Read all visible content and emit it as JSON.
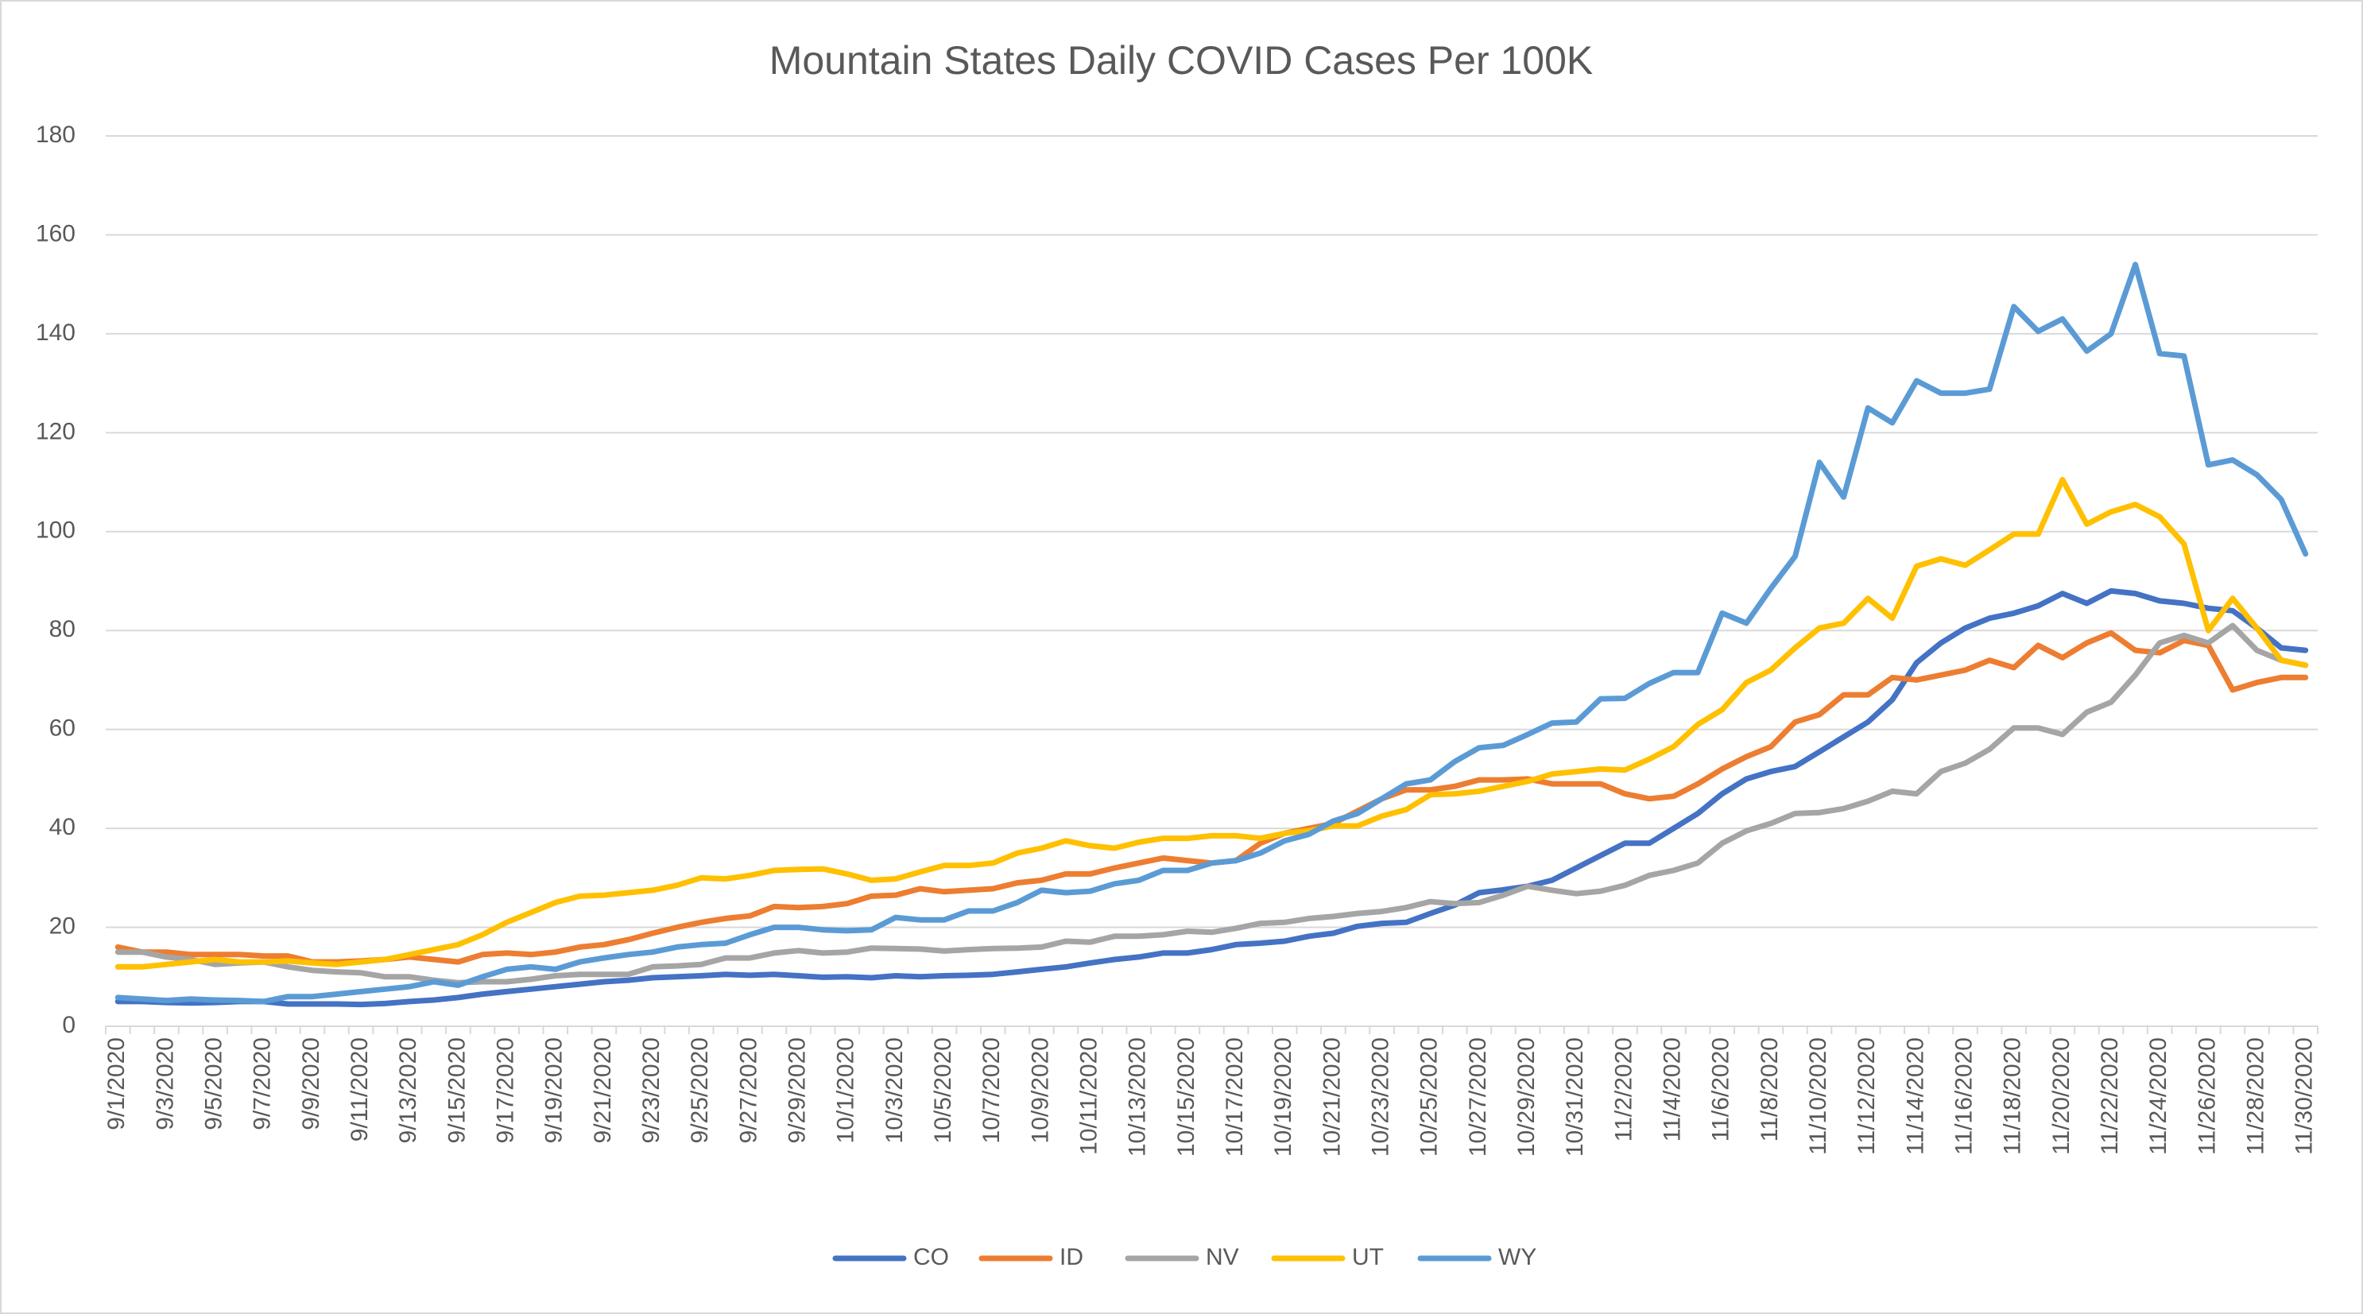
{
  "chart_data": {
    "type": "line",
    "title": "Mountain States Daily COVID Cases Per 100K",
    "categories": [
      "9/1/2020",
      null,
      "9/3/2020",
      null,
      "9/5/2020",
      null,
      "9/7/2020",
      null,
      "9/9/2020",
      null,
      "9/11/2020",
      null,
      "9/13/2020",
      null,
      "9/15/2020",
      null,
      "9/17/2020",
      null,
      "9/19/2020",
      null,
      "9/21/2020",
      null,
      "9/23/2020",
      null,
      "9/25/2020",
      null,
      "9/27/2020",
      null,
      "9/29/2020",
      null,
      "10/1/2020",
      null,
      "10/3/2020",
      null,
      "10/5/2020",
      null,
      "10/7/2020",
      null,
      "10/9/2020",
      null,
      "10/11/2020",
      null,
      "10/13/2020",
      null,
      "10/15/2020",
      null,
      "10/17/2020",
      null,
      "10/19/2020",
      null,
      "10/21/2020",
      null,
      "10/23/2020",
      null,
      "10/25/2020",
      null,
      "10/27/2020",
      null,
      "10/29/2020",
      null,
      "10/31/2020",
      null,
      "11/2/2020",
      null,
      "11/4/2020",
      null,
      "11/6/2020",
      null,
      "11/8/2020",
      null,
      "11/10/2020",
      null,
      "11/12/2020",
      null,
      "11/14/2020",
      null,
      "11/16/2020",
      null,
      "11/18/2020",
      null,
      "11/20/2020",
      null,
      "11/22/2020",
      null,
      "11/24/2020",
      null,
      "11/26/2020",
      null,
      "11/28/2020",
      null,
      "11/30/2020"
    ],
    "series": [
      {
        "name": "CO",
        "color": "#4472c4",
        "values": [
          5,
          5,
          4.8,
          4.7,
          4.8,
          5,
          5,
          4.5,
          4.5,
          4.5,
          4.4,
          4.6,
          5,
          5.3,
          5.8,
          6.5,
          7,
          7.5,
          8,
          8.5,
          9,
          9.3,
          9.8,
          10,
          10.2,
          10.5,
          10.3,
          10.5,
          10.2,
          9.9,
          10,
          9.8,
          10.2,
          10,
          10.2,
          10.3,
          10.5,
          11,
          11.5,
          12,
          12.8,
          13.5,
          14,
          14.8,
          14.8,
          15.5,
          16.5,
          16.8,
          17.2,
          18.2,
          18.8,
          20.2,
          20.8,
          21,
          22.8,
          24.5,
          27,
          27.6,
          28.3,
          29.5,
          32,
          34.5,
          37,
          37,
          40,
          43,
          47,
          50,
          51.5,
          52.5,
          55.5,
          58.5,
          61.5,
          66,
          73.5,
          77.5,
          80.5,
          82.5,
          83.5,
          85,
          87.5,
          85.5,
          88,
          87.5,
          86,
          85.5,
          84.5,
          84,
          80.5,
          76.5,
          76
        ]
      },
      {
        "name": "ID",
        "color": "#ed7d31",
        "values": [
          16,
          15,
          15,
          14.5,
          14.5,
          14.5,
          14.2,
          14.2,
          13,
          13,
          13.2,
          13.5,
          14,
          13.5,
          13,
          14.5,
          14.8,
          14.5,
          15,
          16,
          16.5,
          17.5,
          18.8,
          20,
          21,
          21.8,
          22.3,
          24.2,
          24,
          24.2,
          24.8,
          26.3,
          26.5,
          27.8,
          27.2,
          27.5,
          27.8,
          29,
          29.5,
          30.8,
          30.8,
          32,
          33,
          34,
          33.5,
          33,
          33.5,
          37,
          39,
          40,
          41,
          43.5,
          46,
          47.8,
          47.8,
          48.5,
          49.8,
          49.8,
          50,
          49,
          49,
          49,
          47,
          46,
          46.5,
          49,
          52,
          54.5,
          56.5,
          61.5,
          63,
          67,
          67,
          70.5,
          70,
          71,
          72,
          74,
          72.5,
          77,
          74.5,
          77.5,
          79.5,
          76,
          75.5,
          78,
          77,
          68,
          69.5,
          70.5,
          70.5
        ]
      },
      {
        "name": "NV",
        "color": "#a5a5a5",
        "values": [
          15,
          15,
          14,
          13.5,
          12.5,
          12.8,
          13,
          12,
          11.3,
          11,
          10.8,
          10,
          10,
          9.3,
          8.8,
          9,
          9,
          9.5,
          10.2,
          10.5,
          10.5,
          10.5,
          12,
          12.2,
          12.5,
          13.8,
          13.8,
          14.8,
          15.3,
          14.8,
          15,
          15.8,
          15.7,
          15.6,
          15.2,
          15.5,
          15.7,
          15.8,
          16,
          17.2,
          17,
          18.2,
          18.2,
          18.5,
          19.2,
          19,
          19.8,
          20.8,
          21,
          21.8,
          22.2,
          22.8,
          23.2,
          24,
          25.2,
          24.8,
          25,
          26.5,
          28.3,
          27.5,
          26.8,
          27.3,
          28.5,
          30.5,
          31.5,
          33,
          37,
          39.5,
          41,
          43,
          43.2,
          44,
          45.5,
          47.5,
          47,
          51.5,
          53.2,
          56,
          60.3,
          60.3,
          59,
          63.5,
          65.5,
          71,
          77.5,
          79,
          77.5,
          81,
          76,
          74,
          73
        ]
      },
      {
        "name": "UT",
        "color": "#ffc000",
        "values": [
          12,
          12,
          12.5,
          13,
          13.5,
          13,
          13,
          13.2,
          12.8,
          12.5,
          13,
          13.5,
          14.5,
          15.5,
          16.5,
          18.5,
          21,
          23,
          25,
          26.3,
          26.5,
          27,
          27.5,
          28.5,
          30,
          29.8,
          30.5,
          31.5,
          31.7,
          31.8,
          30.8,
          29.5,
          29.8,
          31.2,
          32.5,
          32.5,
          33,
          35,
          36,
          37.5,
          36.5,
          36,
          37.2,
          38,
          38,
          38.5,
          38.5,
          38,
          39,
          39.5,
          40.5,
          40.5,
          42.5,
          43.8,
          46.8,
          47,
          47.5,
          48.5,
          49.5,
          51,
          51.5,
          52,
          51.8,
          54,
          56.5,
          61,
          64,
          69.5,
          72,
          76.5,
          80.5,
          81.5,
          86.5,
          82.5,
          93,
          94.5,
          93.2,
          96.3,
          99.5,
          99.5,
          110.5,
          101.5,
          104,
          105.5,
          103,
          97.5,
          80,
          86.5,
          80.5,
          74,
          73
        ]
      },
      {
        "name": "WY",
        "color": "#5b9bd5",
        "values": [
          5.8,
          5.5,
          5.2,
          5.5,
          5.3,
          5.2,
          5,
          6,
          6,
          6.5,
          7,
          7.5,
          8,
          9,
          8.3,
          10,
          11.5,
          12,
          11.5,
          13,
          13.8,
          14.5,
          15,
          16,
          16.5,
          16.8,
          18.5,
          20,
          20,
          19.5,
          19.3,
          19.5,
          22,
          21.5,
          21.5,
          23.3,
          23.3,
          25,
          27.5,
          27,
          27.3,
          28.8,
          29.5,
          31.5,
          31.5,
          33,
          33.5,
          35,
          37.5,
          38.8,
          41.5,
          43,
          46,
          49,
          49.8,
          53.5,
          56.3,
          56.8,
          59,
          61.3,
          61.5,
          66.2,
          66.3,
          69.3,
          71.5,
          71.5,
          83.5,
          81.5,
          88.5,
          95,
          114,
          107,
          125,
          122,
          130.5,
          128,
          128,
          128.8,
          145.5,
          140.5,
          143,
          136.5,
          140,
          154,
          136,
          135.5,
          113.5,
          114.5,
          111.5,
          106.5,
          95.5
        ]
      }
    ],
    "ylim": [
      0,
      180
    ],
    "yticks": [
      0,
      20,
      40,
      60,
      80,
      100,
      120,
      140,
      160,
      180
    ],
    "grid": true,
    "legend": "bottom"
  }
}
